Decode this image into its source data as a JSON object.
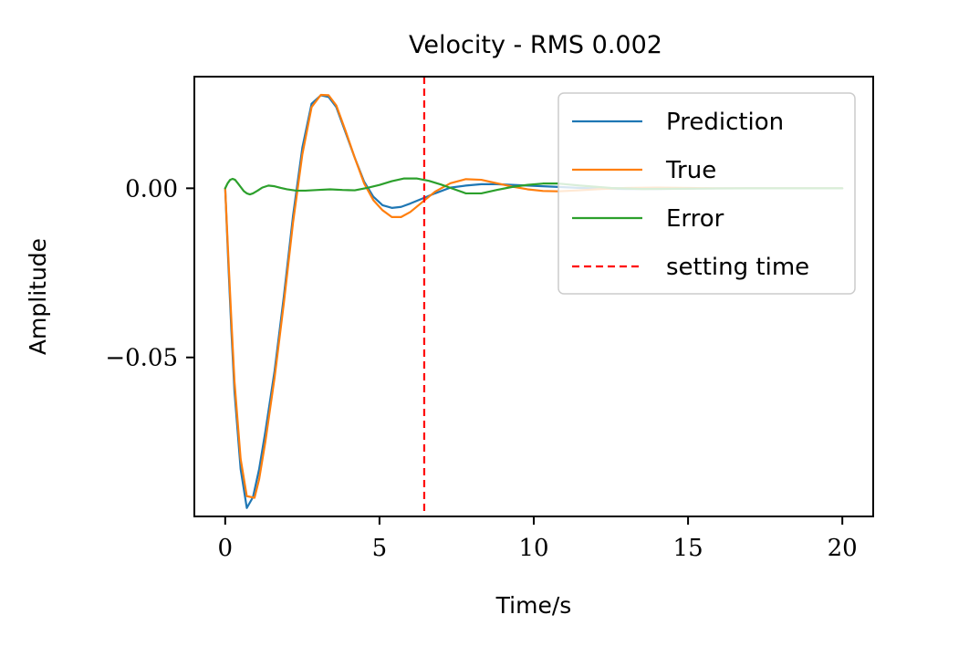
{
  "chart_data": {
    "type": "line",
    "title": "Velocity - RMS 0.002",
    "xlabel": "Time/s",
    "ylabel": "Amplitude",
    "xlim": [
      -1,
      21
    ],
    "ylim": [
      -0.097,
      0.033
    ],
    "xticks": [
      0,
      5,
      10,
      15,
      20
    ],
    "xtick_labels": [
      "0",
      "5",
      "10",
      "15",
      "20"
    ],
    "yticks": [
      0.0,
      -0.05
    ],
    "ytick_labels": [
      "0.00",
      "−0.05"
    ],
    "grid": false,
    "legend_position": "top-right",
    "series": [
      {
        "name": "Prediction",
        "color": "#1f77b4",
        "style": "solid",
        "x": [
          0,
          0.1,
          0.2,
          0.3,
          0.5,
          0.7,
          0.9,
          1.1,
          1.3,
          1.6,
          1.9,
          2.2,
          2.5,
          2.8,
          3.1,
          3.35,
          3.6,
          3.9,
          4.2,
          4.5,
          4.8,
          5.1,
          5.4,
          5.7,
          6.0,
          6.4,
          6.8,
          7.3,
          7.8,
          8.3,
          8.8,
          9.3,
          9.8,
          10.3,
          10.8,
          11.5,
          12.2,
          13.0,
          14.0,
          15.0,
          16.0,
          17.0,
          18.0,
          19.0,
          20.0
        ],
        "y": [
          0.0,
          -0.022,
          -0.042,
          -0.06,
          -0.083,
          -0.0945,
          -0.0913,
          -0.083,
          -0.072,
          -0.054,
          -0.032,
          -0.008,
          0.012,
          0.025,
          0.0275,
          0.027,
          0.024,
          0.0165,
          0.009,
          0.002,
          -0.0025,
          -0.005,
          -0.0058,
          -0.0055,
          -0.0045,
          -0.003,
          -0.0015,
          0.0002,
          0.0008,
          0.0012,
          0.0012,
          0.001,
          0.0008,
          0.0006,
          0.0004,
          0.0001,
          -0.0001,
          -0.0002,
          -0.0002,
          -0.0001,
          0.0,
          0.0,
          0.0,
          0.0,
          0.0
        ]
      },
      {
        "name": "True",
        "color": "#ff7f0e",
        "style": "solid",
        "x": [
          0,
          0.1,
          0.2,
          0.3,
          0.5,
          0.7,
          0.95,
          1.1,
          1.3,
          1.6,
          1.9,
          2.2,
          2.5,
          2.8,
          3.1,
          3.35,
          3.6,
          3.9,
          4.2,
          4.5,
          4.8,
          5.1,
          5.4,
          5.7,
          6.0,
          6.4,
          6.8,
          7.3,
          7.8,
          8.3,
          8.8,
          9.3,
          9.8,
          10.3,
          10.8,
          11.5,
          12.2,
          13.0,
          14.0,
          15.0,
          16.0,
          17.0,
          18.0,
          19.0,
          20.0
        ],
        "y": [
          0.0,
          -0.02,
          -0.039,
          -0.057,
          -0.08,
          -0.091,
          -0.0915,
          -0.086,
          -0.075,
          -0.056,
          -0.034,
          -0.01,
          0.01,
          0.024,
          0.0276,
          0.0275,
          0.0245,
          0.017,
          0.009,
          0.0015,
          -0.0035,
          -0.0065,
          -0.0085,
          -0.0085,
          -0.007,
          -0.004,
          -0.001,
          0.0015,
          0.0027,
          0.0025,
          0.0015,
          0.0005,
          -0.0003,
          -0.0008,
          -0.0009,
          -0.0006,
          -0.0002,
          0.0001,
          0.0002,
          0.0001,
          0.0,
          0.0,
          0.0,
          0.0,
          0.0
        ]
      },
      {
        "name": "Error",
        "color": "#2ca02c",
        "style": "solid",
        "x": [
          0,
          0.08,
          0.16,
          0.24,
          0.32,
          0.4,
          0.5,
          0.6,
          0.7,
          0.8,
          0.9,
          1.05,
          1.2,
          1.4,
          1.6,
          1.8,
          2.0,
          2.3,
          2.6,
          3.0,
          3.4,
          3.8,
          4.2,
          4.6,
          5.0,
          5.4,
          5.8,
          6.2,
          6.6,
          7.0,
          7.4,
          7.8,
          8.3,
          8.8,
          9.3,
          9.8,
          10.3,
          10.8,
          11.5,
          12.5,
          13.5,
          15.0,
          17.0,
          20.0
        ],
        "y": [
          0.0,
          0.0015,
          0.0025,
          0.0028,
          0.0025,
          0.0016,
          0.0004,
          -0.0008,
          -0.0015,
          -0.0018,
          -0.0015,
          -0.0007,
          0.0002,
          0.0008,
          0.0006,
          0.0001,
          -0.0003,
          -0.0007,
          -0.0007,
          -0.0005,
          -0.0003,
          -0.0005,
          -0.0006,
          0.0001,
          0.001,
          0.0021,
          0.0029,
          0.0029,
          0.0022,
          0.0011,
          -0.0002,
          -0.0015,
          -0.0015,
          -0.0005,
          0.0004,
          0.001,
          0.0014,
          0.0014,
          0.0008,
          0.0001,
          -0.0002,
          -0.0001,
          0.0,
          0.0
        ]
      },
      {
        "name": "setting time",
        "color": "#ff0000",
        "style": "dashed",
        "vline_x": 6.45
      }
    ]
  }
}
